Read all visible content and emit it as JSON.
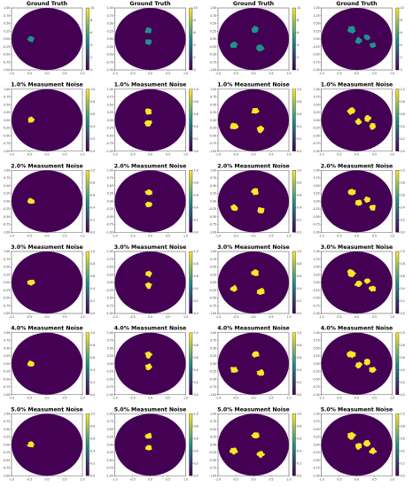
{
  "chart_data": {
    "type": "heatmap",
    "layout": {
      "rows": 6,
      "columns": 4
    },
    "colormap": {
      "name": "viridis",
      "low": "#440154",
      "mid": "#21918c",
      "high": "#fde725"
    },
    "axes": {
      "xlim": [
        -1.0,
        1.0
      ],
      "ylim": [
        -1.0,
        1.0
      ],
      "xticks": [
        "-1.0",
        "-0.5",
        "0.0",
        "0.5",
        "1.0"
      ],
      "yticks": [
        "1.00",
        "0.75",
        "0.50",
        "0.25",
        "0.00",
        "-0.25",
        "-0.50",
        "-0.75",
        "-1.00"
      ],
      "domain": "unit disk",
      "background_value": 0
    },
    "row_titles": [
      "Ground Truth",
      "1.0% Measument Noise",
      "2.0% Measument Noise",
      "3.0% Measument Noise",
      "4.0% Measument Noise",
      "5.0% Measument Noise"
    ],
    "colorbars": {
      "ground_truth": {
        "range": [
          0,
          10
        ],
        "ticks": [
          "0",
          "2",
          "4",
          "6",
          "8",
          "10"
        ]
      },
      "reconstruction": {
        "range": [
          0,
          1
        ],
        "ticks": [
          "0.0",
          "0.2",
          "0.4",
          "0.6",
          "0.8",
          "1.0"
        ]
      }
    },
    "inclusions_per_column": [
      [
        {
          "cx": -0.45,
          "cy": 0.0,
          "r": 0.1
        }
      ],
      [
        {
          "cx": -0.05,
          "cy": 0.28,
          "r": 0.1
        },
        {
          "cx": -0.05,
          "cy": -0.1,
          "r": 0.1
        }
      ],
      [
        {
          "cx": -0.55,
          "cy": -0.2,
          "r": 0.11
        },
        {
          "cx": 0.05,
          "cy": 0.3,
          "r": 0.11
        },
        {
          "cx": 0.2,
          "cy": -0.3,
          "r": 0.11
        }
      ],
      [
        {
          "cx": -0.15,
          "cy": 0.3,
          "r": 0.12
        },
        {
          "cx": 0.05,
          "cy": -0.05,
          "r": 0.1
        },
        {
          "cx": 0.3,
          "cy": 0.05,
          "r": 0.1
        },
        {
          "cx": 0.45,
          "cy": -0.2,
          "r": 0.1
        }
      ]
    ],
    "ground_truth_value": 5
  }
}
